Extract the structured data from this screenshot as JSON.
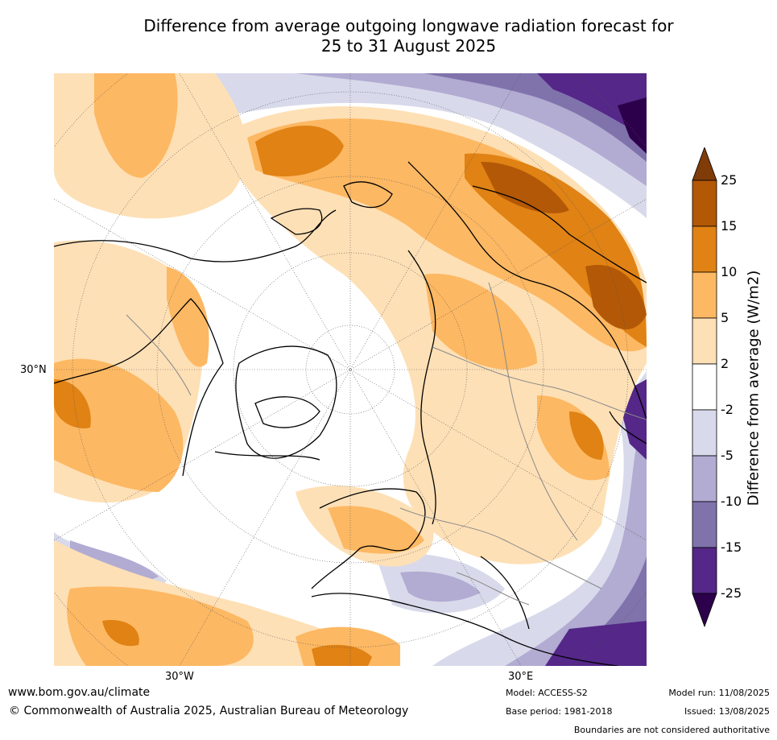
{
  "title_line1": "Difference from average outgoing longwave radiation forecast for",
  "title_line2": "25 to 31 August 2025",
  "axis_labels": {
    "lat_30n": "30°N",
    "lon_30w": "30°W",
    "lon_30e": "30°E"
  },
  "colorbar": {
    "title": "Difference from average (W/m2)",
    "levels": [
      "25",
      "15",
      "10",
      "5",
      "2",
      "-2",
      "-5",
      "-10",
      "-15",
      "-25"
    ],
    "colors": [
      "#7f3b08",
      "#b35806",
      "#e08214",
      "#fdb863",
      "#fee0b6",
      "#ffffff",
      "#d8daeb",
      "#b2abd2",
      "#8073ac",
      "#542788",
      "#2d004b"
    ]
  },
  "footer": {
    "website": "www.bom.gov.au/climate",
    "copyright": "© Commonwealth of Australia 2025, Australian Bureau of Meteorology",
    "model": "Model: ACCESS-S2",
    "base_period": "Base period: 1981-2018",
    "model_run": "Model run: 11/08/2025",
    "issued": "Issued: 13/08/2025",
    "disclaimer": "Boundaries are not considered authoritative"
  }
}
